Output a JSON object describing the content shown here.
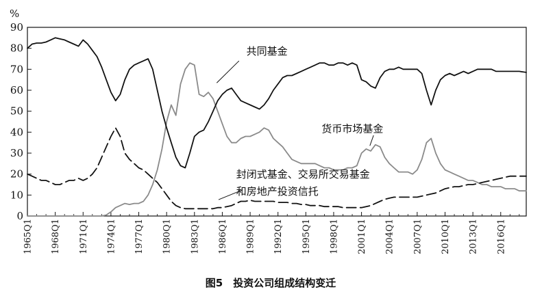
{
  "chart_data": {
    "type": "line",
    "title": "图5　投资公司组成结构变迁",
    "ylabel": "%",
    "xlabel": "",
    "ylim": [
      0,
      90
    ],
    "yticks": [
      0,
      10,
      20,
      30,
      40,
      50,
      60,
      70,
      80,
      90
    ],
    "xlim": [
      1965.0,
      2018.75
    ],
    "xtick_labels": [
      "1965Q1",
      "1968Q1",
      "1971Q1",
      "1974Q1",
      "1977Q1",
      "1980Q1",
      "1983Q1",
      "1986Q1",
      "1989Q1",
      "1992Q1",
      "1995Q1",
      "1998Q1",
      "2001Q1",
      "2004Q1",
      "2007Q1",
      "2010Q1",
      "2013Q1",
      "2016Q1"
    ],
    "grid": false,
    "legend": "none",
    "series": [
      {
        "name": "共同基金",
        "style": "solid",
        "color": "#111111",
        "x": [
          1965.0,
          1965.5,
          1966.0,
          1966.5,
          1967.0,
          1967.5,
          1968.0,
          1968.5,
          1969.0,
          1969.5,
          1970.0,
          1970.5,
          1971.0,
          1971.5,
          1972.0,
          1972.5,
          1973.0,
          1973.5,
          1974.0,
          1974.5,
          1975.0,
          1975.5,
          1976.0,
          1976.5,
          1977.0,
          1977.5,
          1978.0,
          1978.5,
          1979.0,
          1979.5,
          1980.0,
          1980.5,
          1981.0,
          1981.5,
          1982.0,
          1982.5,
          1983.0,
          1983.5,
          1984.0,
          1984.5,
          1985.0,
          1985.5,
          1986.0,
          1986.5,
          1987.0,
          1987.5,
          1988.0,
          1988.5,
          1989.0,
          1989.5,
          1990.0,
          1990.5,
          1991.0,
          1991.5,
          1992.0,
          1992.5,
          1993.0,
          1993.5,
          1994.0,
          1994.5,
          1995.0,
          1995.5,
          1996.0,
          1996.5,
          1997.0,
          1997.5,
          1998.0,
          1998.5,
          1999.0,
          1999.5,
          2000.0,
          2000.5,
          2001.0,
          2001.5,
          2002.0,
          2002.5,
          2003.0,
          2003.5,
          2004.0,
          2004.5,
          2005.0,
          2005.5,
          2006.0,
          2006.5,
          2007.0,
          2007.5,
          2008.0,
          2008.5,
          2009.0,
          2009.5,
          2010.0,
          2010.5,
          2011.0,
          2011.5,
          2012.0,
          2012.5,
          2013.0,
          2013.5,
          2014.0,
          2014.5,
          2015.0,
          2015.5,
          2016.0,
          2016.5,
          2017.0,
          2017.5,
          2018.0,
          2018.75
        ],
        "y": [
          80,
          82,
          82.5,
          82.5,
          83,
          84,
          85,
          84.5,
          84,
          83,
          82,
          81,
          84,
          82,
          79,
          76,
          71,
          65,
          59,
          55,
          58,
          65,
          70,
          72,
          73,
          74,
          75,
          70,
          60,
          50,
          42,
          35,
          28,
          24,
          23,
          30,
          38,
          40,
          41,
          45,
          50,
          55,
          58,
          60,
          61,
          58,
          55,
          54,
          53,
          52,
          51,
          53,
          56,
          60,
          63,
          66,
          67,
          67,
          68,
          69,
          70,
          71,
          72,
          73,
          73,
          72,
          72,
          73,
          73,
          72,
          73,
          72,
          65,
          64,
          62,
          61,
          66,
          69,
          70,
          70,
          71,
          70,
          70,
          70,
          70,
          68,
          60,
          53,
          60,
          65,
          67,
          68,
          67,
          68,
          69,
          68,
          69,
          70,
          70,
          70,
          70,
          69,
          69,
          69,
          69,
          69,
          69,
          68.5
        ]
      },
      {
        "name": "货币市场基金",
        "style": "solid",
        "color": "#8a8a8a",
        "x": [
          1965.0,
          1973.0,
          1973.5,
          1974.0,
          1974.5,
          1975.0,
          1975.5,
          1976.0,
          1976.5,
          1977.0,
          1977.5,
          1978.0,
          1978.5,
          1979.0,
          1979.5,
          1980.0,
          1980.5,
          1981.0,
          1981.5,
          1982.0,
          1982.5,
          1983.0,
          1983.5,
          1984.0,
          1984.5,
          1985.0,
          1985.5,
          1986.0,
          1986.5,
          1987.0,
          1987.5,
          1988.0,
          1988.5,
          1989.0,
          1989.5,
          1990.0,
          1990.5,
          1991.0,
          1991.5,
          1992.0,
          1992.5,
          1993.0,
          1993.5,
          1994.0,
          1994.5,
          1995.0,
          1995.5,
          1996.0,
          1996.5,
          1997.0,
          1997.5,
          1998.0,
          1998.5,
          1999.0,
          1999.5,
          2000.0,
          2000.5,
          2001.0,
          2001.5,
          2002.0,
          2002.5,
          2003.0,
          2003.5,
          2004.0,
          2004.5,
          2005.0,
          2005.5,
          2006.0,
          2006.5,
          2007.0,
          2007.5,
          2008.0,
          2008.5,
          2009.0,
          2009.5,
          2010.0,
          2010.5,
          2011.0,
          2011.5,
          2012.0,
          2012.5,
          2013.0,
          2013.5,
          2014.0,
          2014.5,
          2015.0,
          2015.5,
          2016.0,
          2016.5,
          2017.0,
          2017.5,
          2018.0,
          2018.75
        ],
        "y": [
          0,
          0,
          0.5,
          2,
          4,
          5,
          6,
          5.5,
          6,
          6,
          7,
          10,
          15,
          22,
          32,
          45,
          53,
          48,
          63,
          70,
          73,
          72,
          58,
          57,
          59,
          56,
          50,
          44,
          38,
          35,
          35,
          37,
          38,
          38,
          39,
          40,
          42,
          41,
          37,
          35,
          33,
          30,
          27,
          26,
          25,
          25,
          25,
          25,
          24,
          23,
          23,
          22,
          22,
          22,
          23,
          23,
          24,
          30,
          32,
          31,
          34,
          33,
          28,
          25,
          23,
          21,
          21,
          21,
          20,
          22,
          27,
          35,
          37,
          30,
          25,
          22,
          21,
          20,
          19,
          18,
          17,
          17,
          16,
          15,
          15,
          14,
          14,
          14,
          13,
          13,
          13,
          12,
          12
        ]
      },
      {
        "name": "封闭式基金、交易所交易基金和房地产投资信托",
        "style": "dashed",
        "color": "#111111",
        "x": [
          1965.0,
          1965.5,
          1966.0,
          1966.5,
          1967.0,
          1967.5,
          1968.0,
          1968.5,
          1969.0,
          1969.5,
          1970.0,
          1970.5,
          1971.0,
          1971.5,
          1972.0,
          1972.5,
          1973.0,
          1973.5,
          1974.0,
          1974.5,
          1975.0,
          1975.5,
          1976.0,
          1976.5,
          1977.0,
          1977.5,
          1978.0,
          1978.5,
          1979.0,
          1979.5,
          1980.0,
          1980.5,
          1981.0,
          1981.5,
          1982.0,
          1982.5,
          1983.0,
          1983.5,
          1984.0,
          1984.5,
          1985.0,
          1985.5,
          1986.0,
          1986.5,
          1987.0,
          1987.5,
          1988.0,
          1988.5,
          1989.0,
          1989.5,
          1990.0,
          1990.5,
          1991.0,
          1991.5,
          1992.0,
          1992.5,
          1993.0,
          1993.5,
          1994.0,
          1994.5,
          1995.0,
          1995.5,
          1996.0,
          1996.5,
          1997.0,
          1997.5,
          1998.0,
          1998.5,
          1999.0,
          1999.5,
          2000.0,
          2000.5,
          2001.0,
          2001.5,
          2002.0,
          2002.5,
          2003.0,
          2003.5,
          2004.0,
          2004.5,
          2005.0,
          2005.5,
          2006.0,
          2006.5,
          2007.0,
          2007.5,
          2008.0,
          2008.5,
          2009.0,
          2009.5,
          2010.0,
          2010.5,
          2011.0,
          2011.5,
          2012.0,
          2012.5,
          2013.0,
          2013.5,
          2014.0,
          2014.5,
          2015.0,
          2015.5,
          2016.0,
          2016.5,
          2017.0,
          2017.5,
          2018.0,
          2018.75
        ],
        "y": [
          20,
          19,
          18,
          17,
          17,
          16,
          15,
          15,
          16,
          17,
          17,
          18,
          17,
          18,
          20,
          23,
          28,
          33,
          38,
          42,
          38,
          30,
          27,
          25,
          23,
          22,
          20,
          18,
          16,
          13,
          10,
          7,
          5,
          4,
          3.5,
          3.5,
          3.5,
          3.5,
          3.5,
          3.5,
          3.5,
          4,
          4,
          4.5,
          5,
          6,
          7,
          7,
          7.5,
          7,
          7,
          7,
          7,
          7,
          6.5,
          6.5,
          6.5,
          6,
          6,
          5.5,
          5.5,
          5,
          5,
          5,
          4.5,
          4.5,
          4.5,
          4.5,
          4,
          4,
          4,
          4,
          4,
          4.5,
          5,
          6,
          7,
          8,
          8.5,
          9,
          9,
          9,
          9,
          9,
          9,
          9.5,
          10,
          10.5,
          11,
          12,
          13,
          13.5,
          14,
          14,
          14.5,
          15,
          15,
          15.5,
          16,
          16.5,
          17,
          17.5,
          18,
          18.5,
          19,
          19,
          19,
          19
        ]
      }
    ],
    "annotations": [
      {
        "text": "共同基金",
        "x": 1988.6,
        "y": 77
      },
      {
        "text": "货币市场基金",
        "x": 1996.7,
        "y": 40
      },
      {
        "text": "封闭式基金、交易所交易基金",
        "x": 1987.5,
        "y": 18.3
      },
      {
        "text": "和房地产投资信托",
        "x": 1987.5,
        "y": 10.1
      }
    ],
    "leaders": [
      {
        "x1": 1987.8,
        "y1": 74,
        "x2": 1985.4,
        "y2": 63.5
      },
      {
        "x1": 2002.3,
        "y1": 38.5,
        "x2": 2001.9,
        "y2": 33.5
      },
      {
        "x1": 1988.2,
        "y1": 12.5,
        "x2": 1985.6,
        "y2": 7.8
      }
    ]
  }
}
